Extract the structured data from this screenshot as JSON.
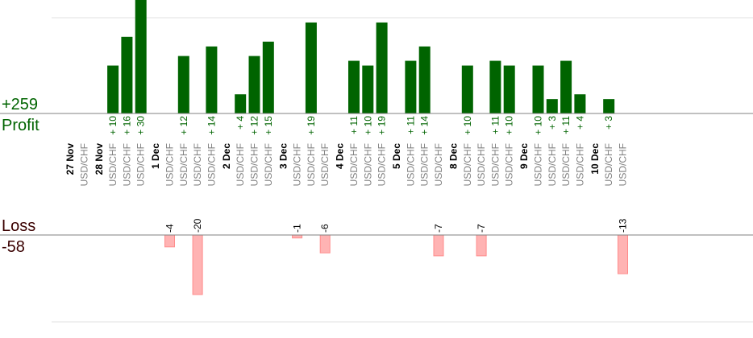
{
  "summary": {
    "profit_total": "+259",
    "profit_label": "Profit",
    "loss_label": "Loss",
    "loss_total": "-58"
  },
  "colors": {
    "profit_bar": "#006400",
    "profit_text": "#006400",
    "loss_bar": "#ffb3b3",
    "loss_bar_edge": "#ff8c8c",
    "date_text": "#000000",
    "pair_text": "#808080",
    "axis": "#808080",
    "grid": "#e0e0e0"
  },
  "chart_data": {
    "type": "bar",
    "profit_ylim": [
      0,
      20
    ],
    "loss_ylim": [
      0,
      20
    ],
    "days": [
      {
        "date": "27 Nov",
        "trades": [
          {
            "pair": "USD/CHF",
            "value": null
          }
        ]
      },
      {
        "date": "28 Nov",
        "trades": [
          {
            "pair": "USD/CHF",
            "value": 10
          },
          {
            "pair": "USD/CHF",
            "value": 16
          },
          {
            "pair": "USD/CHF",
            "value": 30
          }
        ]
      },
      {
        "date": "1 Dec",
        "trades": [
          {
            "pair": "USD/CHF",
            "value": -4
          },
          {
            "pair": "USD/CHF",
            "value": 12
          },
          {
            "pair": "USD/CHF",
            "value": -20
          },
          {
            "pair": "USD/CHF",
            "value": 14
          }
        ]
      },
      {
        "date": "2 Dec",
        "trades": [
          {
            "pair": "USD/CHF",
            "value": 4
          },
          {
            "pair": "USD/CHF",
            "value": 12
          },
          {
            "pair": "USD/CHF",
            "value": 15
          }
        ]
      },
      {
        "date": "3 Dec",
        "trades": [
          {
            "pair": "USD/CHF",
            "value": -1
          },
          {
            "pair": "USD/CHF",
            "value": 19
          },
          {
            "pair": "USD/CHF",
            "value": -6
          }
        ]
      },
      {
        "date": "4 Dec",
        "trades": [
          {
            "pair": "USD/CHF",
            "value": 11
          },
          {
            "pair": "USD/CHF",
            "value": 10
          },
          {
            "pair": "USD/CHF",
            "value": 19
          }
        ]
      },
      {
        "date": "5 Dec",
        "trades": [
          {
            "pair": "USD/CHF",
            "value": 11
          },
          {
            "pair": "USD/CHF",
            "value": 14
          },
          {
            "pair": "USD/CHF",
            "value": -7
          }
        ]
      },
      {
        "date": "8 Dec",
        "trades": [
          {
            "pair": "USD/CHF",
            "value": 10
          },
          {
            "pair": "USD/CHF",
            "value": -7
          },
          {
            "pair": "USD/CHF",
            "value": 11
          },
          {
            "pair": "USD/CHF",
            "value": 10
          }
        ]
      },
      {
        "date": "9 Dec",
        "trades": [
          {
            "pair": "USD/CHF",
            "value": 10
          },
          {
            "pair": "USD/CHF",
            "value": 3
          },
          {
            "pair": "USD/CHF",
            "value": 11
          },
          {
            "pair": "USD/CHF",
            "value": 4
          }
        ]
      },
      {
        "date": "10 Dec",
        "trades": [
          {
            "pair": "USD/CHF",
            "value": 3
          },
          {
            "pair": "USD/CHF",
            "value": -13
          }
        ]
      }
    ]
  }
}
